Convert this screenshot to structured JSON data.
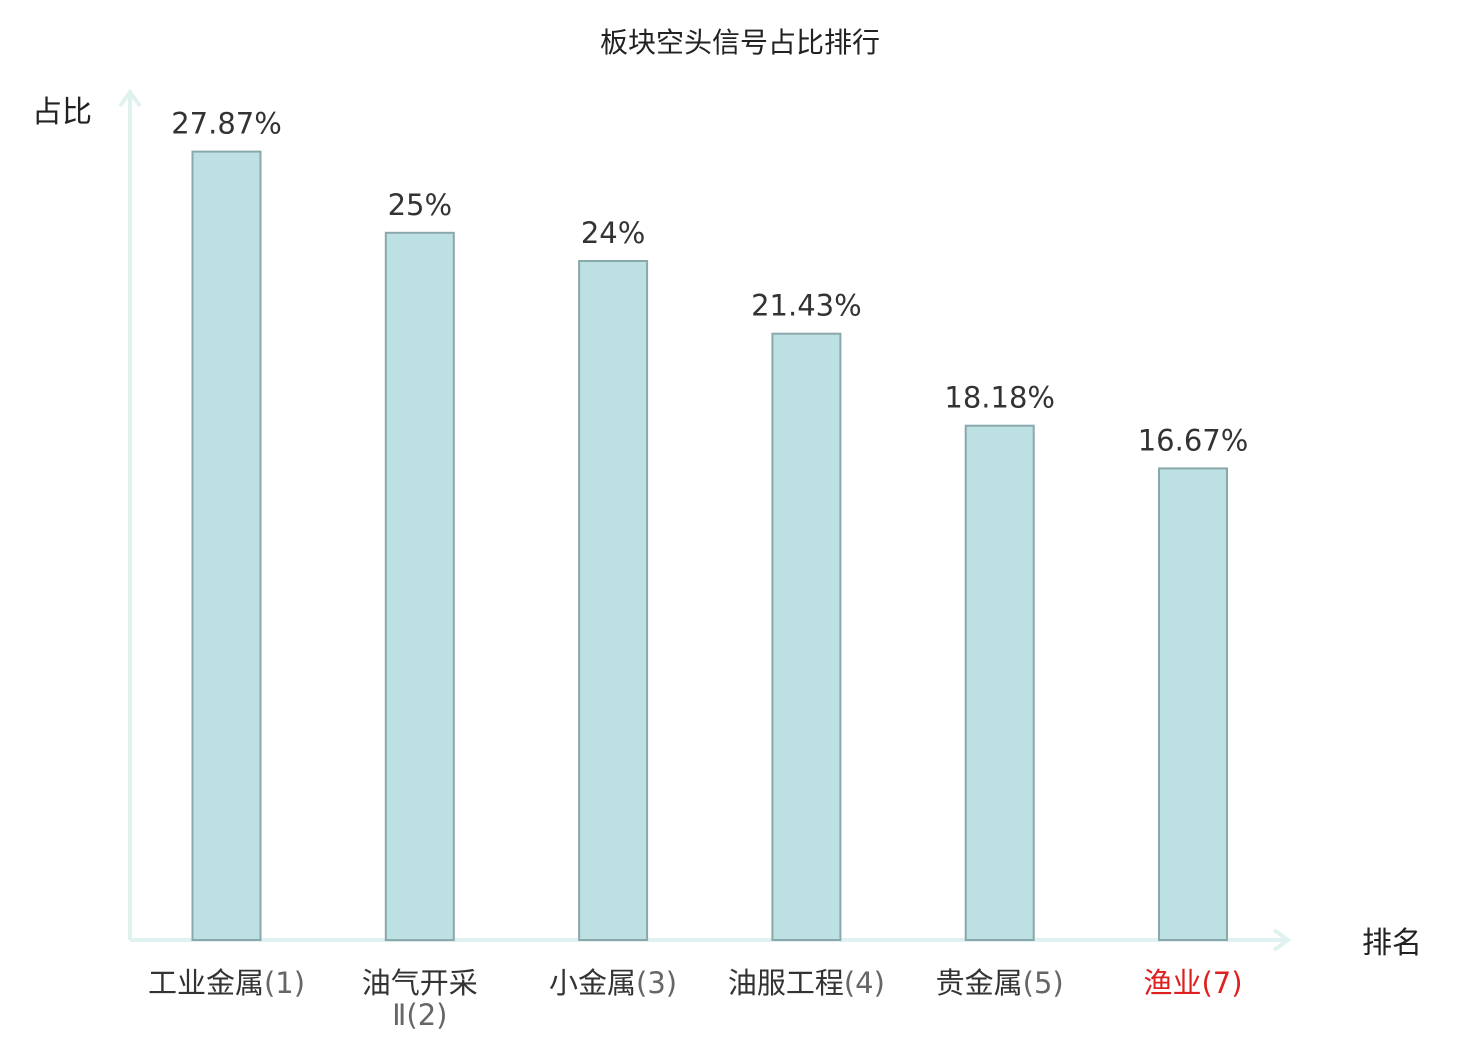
{
  "chart_data": {
    "type": "bar",
    "title": "板块空头信号占比排行",
    "ylabel": "占比",
    "xlabel": "排名",
    "categories": [
      {
        "name": "工业金属",
        "rank": "(1)",
        "highlight": false
      },
      {
        "name": "油气开采",
        "name_line2": "Ⅱ",
        "rank": "(2)",
        "highlight": false
      },
      {
        "name": "小金属",
        "rank": "(3)",
        "highlight": false
      },
      {
        "name": "油服工程",
        "rank": "(4)",
        "highlight": false
      },
      {
        "name": "贵金属",
        "rank": "(5)",
        "highlight": false
      },
      {
        "name": "渔业",
        "rank": "(7)",
        "highlight": true
      }
    ],
    "values": [
      27.87,
      25,
      24,
      21.43,
      18.18,
      16.67
    ],
    "value_labels": [
      "27.87%",
      "25%",
      "24%",
      "21.43%",
      "18.18%",
      "16.67%"
    ],
    "ylim": [
      0,
      30
    ],
    "grid": false,
    "legend": "none",
    "colors": {
      "bar_fill": "#bde0e3",
      "bar_stroke": "#8aa7ab",
      "axis": "#e0f2ef",
      "highlight_text": "#e02020",
      "text": "#333333"
    }
  }
}
